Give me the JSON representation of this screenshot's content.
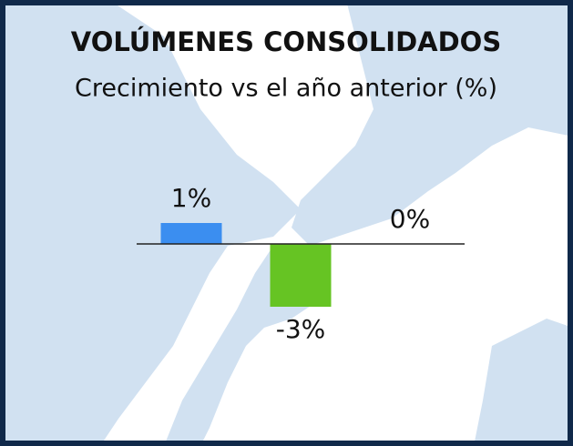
{
  "chart_data": {
    "type": "bar",
    "title": "VOLÚMENES CONSOLIDADOS",
    "subtitle": "Crecimiento vs el año anterior (%)",
    "categories": [
      null,
      null,
      null
    ],
    "values": [
      1,
      -3,
      0
    ],
    "value_labels": [
      "1%",
      "-3%",
      "0%"
    ],
    "colors": [
      "#3b8ef0",
      "#66c423",
      "#66c423"
    ]
  }
}
